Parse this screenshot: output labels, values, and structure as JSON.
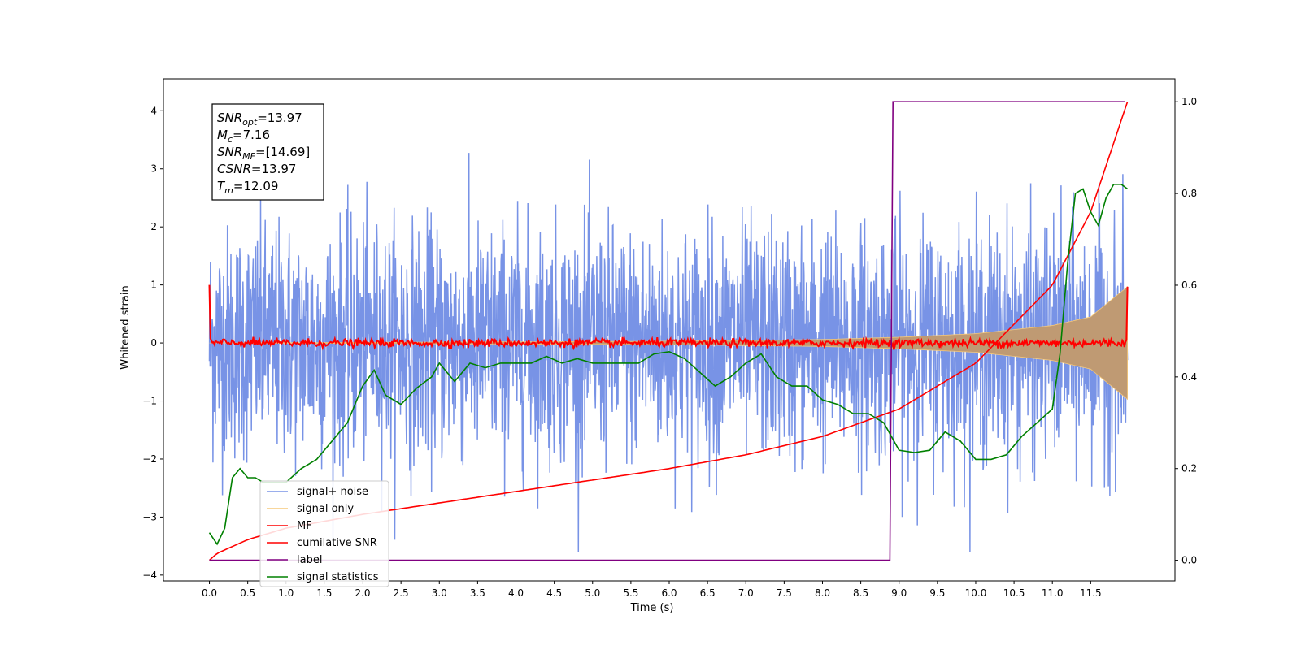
{
  "chart_data": {
    "type": "line",
    "xlabel": "Time (s)",
    "ylabel_left": "Whitened strain",
    "ylabel_right": "",
    "xlim": [
      -0.6,
      12.6
    ],
    "ylim_left": [
      -4.1,
      4.55
    ],
    "ylim_right": [
      -0.045,
      1.05
    ],
    "x_ticks": [
      "0.0",
      "0.5",
      "1.0",
      "1.5",
      "2.0",
      "2.5",
      "3.0",
      "3.5",
      "4.0",
      "4.5",
      "5.0",
      "5.5",
      "6.0",
      "6.5",
      "7.0",
      "7.5",
      "8.0",
      "8.5",
      "9.0",
      "9.5",
      "10.0",
      "10.5",
      "11.0",
      "11.5"
    ],
    "y_ticks_left": [
      "4",
      "3",
      "2",
      "1",
      "0",
      "−1",
      "−2",
      "−3",
      "−4"
    ],
    "y_ticks_right": [
      "1.0",
      "0.8",
      "0.6",
      "0.4",
      "0.2",
      "0.0"
    ],
    "grid": false,
    "legend_position": "bottom-left",
    "annotation": {
      "lines": [
        {
          "base": "SNR",
          "sub": "opt",
          "value": "=13.97"
        },
        {
          "base": "M",
          "sub": "c",
          "value": "=7.16"
        },
        {
          "base": "SNR",
          "sub": "MF",
          "value": "=[14.69]"
        },
        {
          "base": "CSNR",
          "sub": "",
          "value": "=13.97"
        },
        {
          "base": "T",
          "sub": "m",
          "value": "=12.09"
        }
      ]
    },
    "series": [
      {
        "name": "signal+ noise",
        "color": "#7893e6",
        "axis": "left",
        "kind": "noise",
        "x_range": [
          0.0,
          11.98
        ],
        "std": 1.0
      },
      {
        "name": "signal only",
        "color": "#f5c87a",
        "fill_color": "#bf9a73",
        "axis": "left",
        "kind": "chirp_envelope",
        "x": [
          0.0,
          6.0,
          8.0,
          9.0,
          10.0,
          11.0,
          11.5,
          11.98
        ],
        "y_amplitude": [
          0.0,
          0.03,
          0.06,
          0.1,
          0.16,
          0.3,
          0.45,
          0.97
        ]
      },
      {
        "name": "MF",
        "color": "#ff0000",
        "axis": "left",
        "kind": "mf",
        "x_range": [
          0.0,
          11.98
        ],
        "start_value": 1.0,
        "end_value": 0.97,
        "std": 0.035
      },
      {
        "name": "cumilative SNR",
        "color": "#ff0000",
        "axis": "right",
        "x": [
          0.0,
          0.1,
          0.5,
          1.0,
          2.0,
          3.0,
          4.0,
          5.0,
          6.0,
          7.0,
          8.0,
          9.0,
          10.0,
          11.0,
          11.5,
          11.98
        ],
        "y": [
          0.0,
          0.015,
          0.045,
          0.07,
          0.1,
          0.125,
          0.15,
          0.175,
          0.2,
          0.23,
          0.27,
          0.33,
          0.43,
          0.6,
          0.76,
          1.0
        ]
      },
      {
        "name": "label",
        "color": "#800080",
        "axis": "right",
        "x": [
          0.0,
          8.88,
          8.92,
          11.95
        ],
        "y": [
          0.0,
          0.0,
          1.0,
          1.0
        ]
      },
      {
        "name": "signal statistics",
        "color": "#008000",
        "axis": "right",
        "x": [
          0.0,
          0.1,
          0.2,
          0.3,
          0.4,
          0.5,
          0.6,
          0.7,
          0.8,
          0.9,
          1.0,
          1.2,
          1.4,
          1.6,
          1.8,
          2.0,
          2.15,
          2.3,
          2.5,
          2.7,
          2.9,
          3.0,
          3.2,
          3.4,
          3.6,
          3.8,
          4.0,
          4.2,
          4.4,
          4.6,
          4.8,
          5.0,
          5.2,
          5.4,
          5.6,
          5.8,
          6.0,
          6.2,
          6.4,
          6.6,
          6.8,
          7.0,
          7.2,
          7.4,
          7.6,
          7.8,
          8.0,
          8.2,
          8.4,
          8.6,
          8.8,
          9.0,
          9.2,
          9.4,
          9.6,
          9.8,
          10.0,
          10.2,
          10.4,
          10.6,
          10.8,
          11.0,
          11.1,
          11.2,
          11.3,
          11.4,
          11.5,
          11.6,
          11.7,
          11.8,
          11.9,
          11.98
        ],
        "y": [
          0.06,
          0.035,
          0.07,
          0.18,
          0.2,
          0.18,
          0.18,
          0.17,
          0.17,
          0.17,
          0.17,
          0.2,
          0.22,
          0.26,
          0.3,
          0.38,
          0.415,
          0.36,
          0.34,
          0.375,
          0.4,
          0.43,
          0.39,
          0.43,
          0.42,
          0.43,
          0.43,
          0.43,
          0.445,
          0.43,
          0.44,
          0.43,
          0.43,
          0.43,
          0.43,
          0.45,
          0.455,
          0.44,
          0.41,
          0.38,
          0.4,
          0.43,
          0.45,
          0.4,
          0.38,
          0.38,
          0.35,
          0.34,
          0.32,
          0.32,
          0.3,
          0.24,
          0.235,
          0.24,
          0.28,
          0.26,
          0.22,
          0.22,
          0.23,
          0.27,
          0.3,
          0.33,
          0.45,
          0.65,
          0.8,
          0.81,
          0.76,
          0.73,
          0.79,
          0.82,
          0.82,
          0.81
        ]
      }
    ]
  }
}
